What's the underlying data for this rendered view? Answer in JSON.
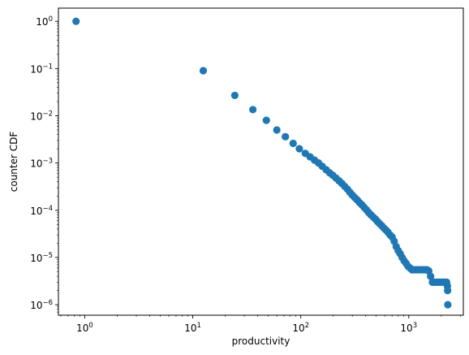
{
  "chart_data": {
    "type": "scatter",
    "title": "",
    "xlabel": "productivity",
    "ylabel": "counter CDF",
    "xscale": "log",
    "yscale": "log",
    "xlim": [
      0.57,
      3200
    ],
    "ylim": [
      6e-07,
      1.9
    ],
    "grid": false,
    "marker_color": "#1f77b4",
    "x_ticks": [
      {
        "value": 1,
        "base": "10",
        "exp": "0"
      },
      {
        "value": 10,
        "base": "10",
        "exp": "1"
      },
      {
        "value": 100,
        "base": "10",
        "exp": "2"
      },
      {
        "value": 1000,
        "base": "10",
        "exp": "3"
      }
    ],
    "y_ticks": [
      {
        "value": 1,
        "base": "10",
        "exp": "0"
      },
      {
        "value": 0.1,
        "base": "10",
        "exp": "−1"
      },
      {
        "value": 0.01,
        "base": "10",
        "exp": "−2"
      },
      {
        "value": 0.001,
        "base": "10",
        "exp": "−3"
      },
      {
        "value": 0.0001,
        "base": "10",
        "exp": "−4"
      },
      {
        "value": 1e-05,
        "base": "10",
        "exp": "−5"
      },
      {
        "value": 1e-06,
        "base": "10",
        "exp": "−6"
      }
    ],
    "series": [
      {
        "x": [
          0.83,
          12.5,
          24.5,
          36,
          48,
          60,
          72,
          85,
          97,
          110,
          122,
          134,
          146,
          158,
          172,
          185,
          198,
          212,
          226,
          240,
          255,
          270,
          285,
          300,
          316,
          333,
          350,
          368,
          386,
          405,
          425,
          446,
          468,
          490,
          513,
          537,
          562,
          588,
          615,
          643,
          672,
          702,
          733,
          765,
          798,
          833,
          869,
          906,
          945,
          985,
          1026,
          1069,
          1113,
          1160,
          1208,
          1257,
          1308,
          1361,
          1416,
          1473,
          1532,
          1593,
          1656,
          1720,
          1790,
          1860,
          1930,
          2000,
          2080,
          2160,
          2240,
          2280,
          2290,
          2300
        ],
        "y": [
          1.0,
          0.09,
          0.027,
          0.0135,
          0.008,
          0.005,
          0.0036,
          0.0026,
          0.002,
          0.0016,
          0.00135,
          0.00115,
          0.001,
          0.00085,
          0.00072,
          0.00062,
          0.00055,
          0.00048,
          0.00042,
          0.00037,
          0.00032,
          0.00028,
          0.00024,
          0.00021,
          0.000185,
          0.000165,
          0.000145,
          0.00013,
          0.000115,
          0.000102,
          9e-05,
          8e-05,
          7.2e-05,
          6.5e-05,
          5.8e-05,
          5.2e-05,
          4.7e-05,
          4.2e-05,
          3.8e-05,
          3.4e-05,
          3e-05,
          2.7e-05,
          2.2e-05,
          1.7e-05,
          1.4e-05,
          1.2e-05,
          1e-05,
          8.5e-06,
          7.5e-06,
          6.5e-06,
          6e-06,
          5.5e-06,
          5.5e-06,
          5.5e-06,
          5.5e-06,
          5.5e-06,
          5.5e-06,
          5.5e-06,
          5.5e-06,
          5.5e-06,
          5.2e-06,
          4e-06,
          3e-06,
          3e-06,
          3e-06,
          3e-06,
          3e-06,
          3e-06,
          3e-06,
          3e-06,
          3e-06,
          2.5e-06,
          2e-06,
          1e-06
        ]
      }
    ]
  }
}
